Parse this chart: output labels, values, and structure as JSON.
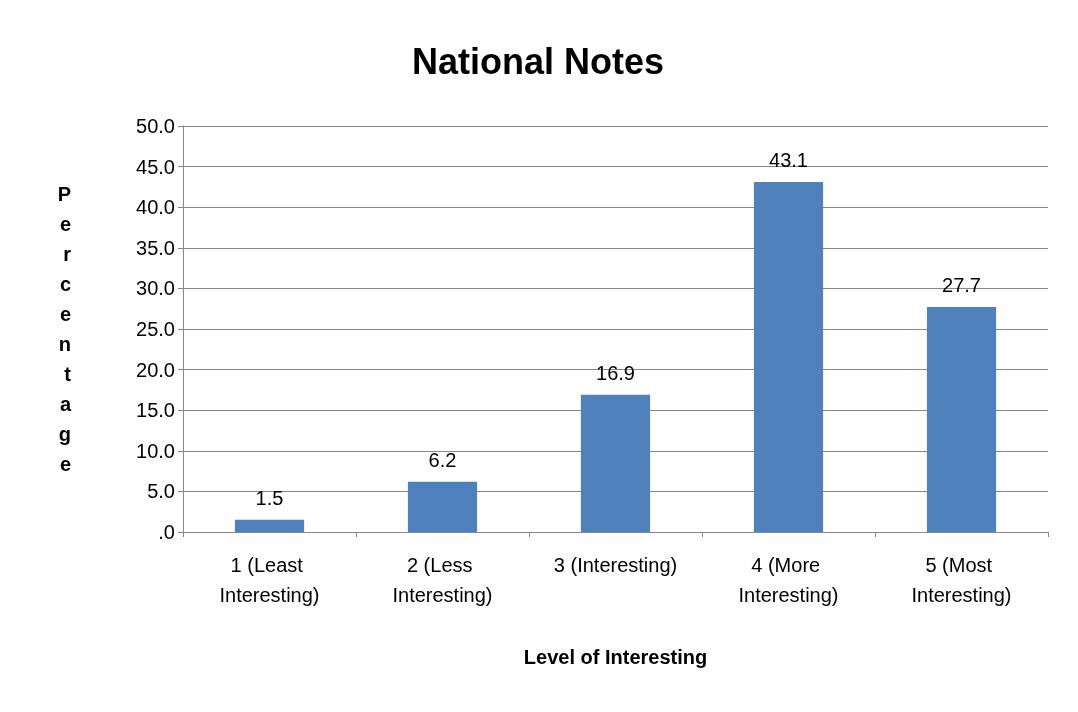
{
  "chart_data": {
    "type": "bar",
    "title": "National Notes",
    "xlabel": "Level of Interesting",
    "ylabel": "Percentage",
    "categories": [
      "1 (Least Interesting)",
      "2 (Less Interesting)",
      "3 (Interesting)",
      "4 (More Interesting)",
      "5 (Most Interesting)"
    ],
    "values": [
      1.5,
      6.2,
      16.9,
      43.1,
      27.7
    ],
    "color": "#4f81bd",
    "data_labels": true,
    "grid": "y",
    "ylim": [
      0,
      50
    ],
    "yticks": [
      {
        "value": 0,
        "label": ".0"
      },
      {
        "value": 5,
        "label": "5.0"
      },
      {
        "value": 10,
        "label": "10.0"
      },
      {
        "value": 15,
        "label": "15.0"
      },
      {
        "value": 20,
        "label": "20.0"
      },
      {
        "value": 25,
        "label": "25.0"
      },
      {
        "value": 30,
        "label": "30.0"
      },
      {
        "value": 35,
        "label": "35.0"
      },
      {
        "value": 40,
        "label": "40.0"
      },
      {
        "value": 45,
        "label": "45.0"
      },
      {
        "value": 50,
        "label": "50.0"
      }
    ]
  }
}
